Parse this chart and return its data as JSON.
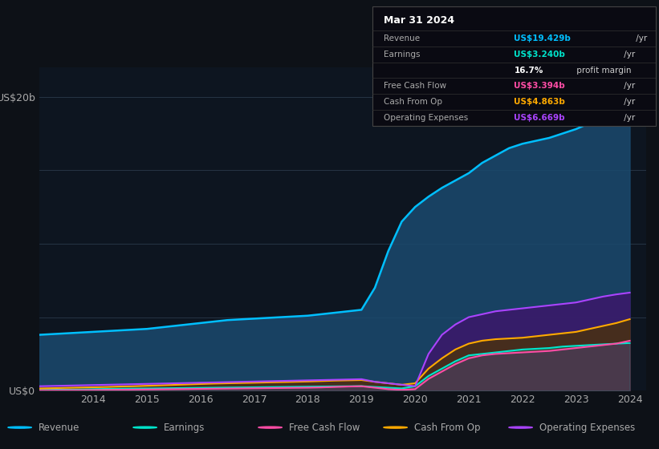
{
  "background_color": "#0d1117",
  "plot_bg_color": "#0d1520",
  "years": [
    2013,
    2013.25,
    2013.5,
    2013.75,
    2014,
    2014.25,
    2014.5,
    2014.75,
    2015,
    2015.25,
    2015.5,
    2015.75,
    2016,
    2016.25,
    2016.5,
    2016.75,
    2017,
    2017.25,
    2017.5,
    2017.75,
    2018,
    2018.25,
    2018.5,
    2018.75,
    2019,
    2019.25,
    2019.5,
    2019.75,
    2020,
    2020.25,
    2020.5,
    2020.75,
    2021,
    2021.25,
    2021.5,
    2021.75,
    2022,
    2022.25,
    2022.5,
    2022.75,
    2023,
    2023.25,
    2023.5,
    2023.75,
    2024
  ],
  "revenue": [
    3.8,
    3.85,
    3.9,
    3.95,
    4.0,
    4.05,
    4.1,
    4.15,
    4.2,
    4.3,
    4.4,
    4.5,
    4.6,
    4.7,
    4.8,
    4.85,
    4.9,
    4.95,
    5.0,
    5.05,
    5.1,
    5.2,
    5.3,
    5.4,
    5.5,
    7.0,
    9.5,
    11.5,
    12.5,
    13.2,
    13.8,
    14.3,
    14.8,
    15.5,
    16.0,
    16.5,
    16.8,
    17.0,
    17.2,
    17.5,
    17.8,
    18.2,
    18.6,
    19.0,
    19.429
  ],
  "earnings": [
    0.05,
    0.06,
    0.07,
    0.08,
    0.1,
    0.12,
    0.13,
    0.14,
    0.15,
    0.16,
    0.17,
    0.18,
    0.19,
    0.2,
    0.21,
    0.22,
    0.23,
    0.24,
    0.25,
    0.26,
    0.27,
    0.28,
    0.29,
    0.3,
    0.31,
    0.25,
    0.2,
    0.15,
    0.3,
    1.0,
    1.5,
    2.0,
    2.4,
    2.5,
    2.6,
    2.7,
    2.8,
    2.85,
    2.9,
    3.0,
    3.05,
    3.1,
    3.15,
    3.2,
    3.24
  ],
  "free_cash_flow": [
    0.02,
    0.02,
    0.03,
    0.03,
    0.04,
    0.05,
    0.06,
    0.07,
    0.08,
    0.09,
    0.1,
    0.11,
    0.12,
    0.13,
    0.14,
    0.15,
    0.16,
    0.17,
    0.18,
    0.19,
    0.2,
    0.22,
    0.25,
    0.28,
    0.3,
    0.2,
    0.1,
    0.05,
    0.1,
    0.8,
    1.3,
    1.8,
    2.2,
    2.4,
    2.5,
    2.55,
    2.6,
    2.65,
    2.7,
    2.8,
    2.9,
    3.0,
    3.1,
    3.2,
    3.394
  ],
  "cash_from_op": [
    0.15,
    0.17,
    0.19,
    0.21,
    0.23,
    0.25,
    0.28,
    0.3,
    0.33,
    0.36,
    0.39,
    0.42,
    0.45,
    0.48,
    0.5,
    0.52,
    0.54,
    0.56,
    0.58,
    0.6,
    0.62,
    0.65,
    0.68,
    0.7,
    0.72,
    0.6,
    0.5,
    0.4,
    0.5,
    1.5,
    2.2,
    2.8,
    3.2,
    3.4,
    3.5,
    3.55,
    3.6,
    3.7,
    3.8,
    3.9,
    4.0,
    4.2,
    4.4,
    4.6,
    4.863
  ],
  "operating_expenses": [
    0.3,
    0.32,
    0.34,
    0.36,
    0.38,
    0.4,
    0.42,
    0.44,
    0.46,
    0.48,
    0.5,
    0.52,
    0.54,
    0.56,
    0.58,
    0.6,
    0.62,
    0.64,
    0.66,
    0.68,
    0.7,
    0.72,
    0.74,
    0.76,
    0.78,
    0.6,
    0.5,
    0.4,
    0.3,
    2.5,
    3.8,
    4.5,
    5.0,
    5.2,
    5.4,
    5.5,
    5.6,
    5.7,
    5.8,
    5.9,
    6.0,
    6.2,
    6.4,
    6.55,
    6.669
  ],
  "revenue_color": "#00bfff",
  "revenue_fill": "#1a4a6e",
  "earnings_color": "#00e5cc",
  "earnings_fill": "#0a3a3a",
  "free_cash_flow_color": "#ff4da6",
  "free_cash_flow_fill": "#5a1a3a",
  "cash_from_op_color": "#ffaa00",
  "cash_from_op_fill": "#4a3010",
  "operating_expenses_color": "#aa44ff",
  "operating_expenses_fill": "#3a1a6a",
  "grid_color": "#2a3a4a",
  "tick_color": "#aaaaaa",
  "tooltip_bg": "#0a0a12",
  "tooltip_border": "#444444",
  "tooltip_title": "Mar 31 2024",
  "tooltip_rows": [
    {
      "label": "Revenue",
      "value": "US$19.429b",
      "suffix": " /yr",
      "color": "#00bfff"
    },
    {
      "label": "Earnings",
      "value": "US$3.240b",
      "suffix": " /yr",
      "color": "#00e5cc"
    },
    {
      "label": "",
      "value": "16.7%",
      "suffix": " profit margin",
      "color": "#ffffff"
    },
    {
      "label": "Free Cash Flow",
      "value": "US$3.394b",
      "suffix": " /yr",
      "color": "#ff4da6"
    },
    {
      "label": "Cash From Op",
      "value": "US$4.863b",
      "suffix": " /yr",
      "color": "#ffaa00"
    },
    {
      "label": "Operating Expenses",
      "value": "US$6.669b",
      "suffix": " /yr",
      "color": "#aa44ff"
    }
  ],
  "legend": [
    {
      "label": "Revenue",
      "color": "#00bfff"
    },
    {
      "label": "Earnings",
      "color": "#00e5cc"
    },
    {
      "label": "Free Cash Flow",
      "color": "#ff4da6"
    },
    {
      "label": "Cash From Op",
      "color": "#ffaa00"
    },
    {
      "label": "Operating Expenses",
      "color": "#aa44ff"
    }
  ],
  "xlim": [
    2013,
    2024.3
  ],
  "ylim": [
    0,
    22
  ],
  "xticks": [
    2014,
    2015,
    2016,
    2017,
    2018,
    2019,
    2020,
    2021,
    2022,
    2023,
    2024
  ]
}
